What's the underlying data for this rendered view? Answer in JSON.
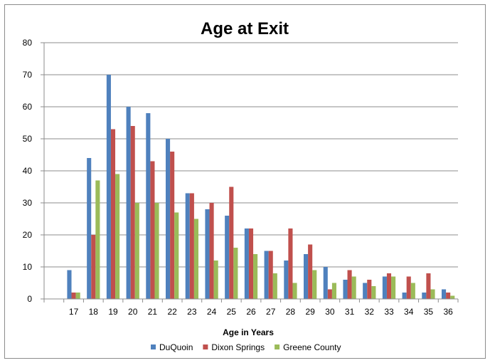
{
  "chart_data": {
    "type": "bar",
    "title": "Age at Exit",
    "xlabel": "Age in Years",
    "ylabel": "",
    "ylim": [
      0,
      80
    ],
    "yticks": [
      0,
      10,
      20,
      30,
      40,
      50,
      60,
      70,
      80
    ],
    "grid": "horizontal",
    "legend_position": "bottom",
    "categories": [
      "17",
      "18",
      "19",
      "20",
      "21",
      "22",
      "23",
      "24",
      "25",
      "26",
      "27",
      "28",
      "29",
      "30",
      "31",
      "32",
      "33",
      "34",
      "35",
      "36"
    ],
    "series": [
      {
        "name": "DuQuoin",
        "color": "#4f81bd",
        "values": [
          9,
          44,
          70,
          60,
          58,
          50,
          33,
          28,
          26,
          22,
          15,
          12,
          14,
          10,
          6,
          5,
          7,
          2,
          2,
          3
        ]
      },
      {
        "name": "Dixon Springs",
        "color": "#c0504d",
        "values": [
          2,
          20,
          53,
          54,
          43,
          46,
          33,
          30,
          35,
          22,
          15,
          22,
          17,
          3,
          9,
          6,
          8,
          7,
          8,
          2
        ]
      },
      {
        "name": "Greene County",
        "color": "#9bbb59",
        "values": [
          2,
          37,
          39,
          30,
          30,
          27,
          25,
          12,
          16,
          14,
          8,
          5,
          9,
          5,
          7,
          4,
          7,
          5,
          3,
          1
        ]
      }
    ]
  }
}
